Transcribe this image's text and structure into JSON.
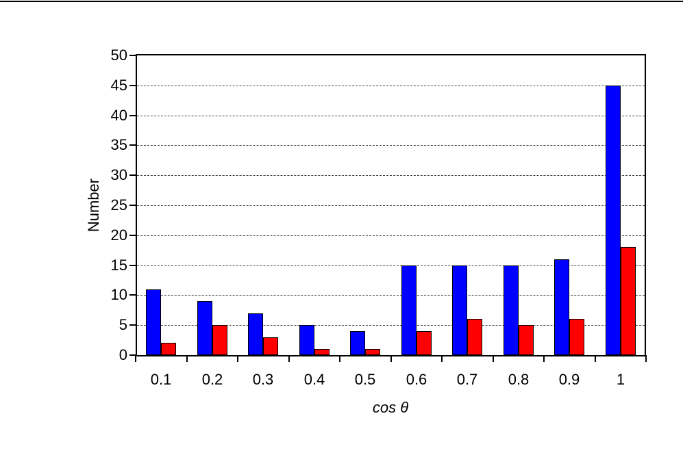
{
  "chart_data": {
    "type": "bar",
    "title": "",
    "categories": [
      "0.1",
      "0.2",
      "0.3",
      "0.4",
      "0.5",
      "0.6",
      "0.7",
      "0.8",
      "0.9",
      "1"
    ],
    "series": [
      {
        "name": "blue-series",
        "color": "#0000FF",
        "values": [
          11,
          9,
          7,
          5,
          4,
          15,
          15,
          15,
          16,
          45
        ]
      },
      {
        "name": "red-series",
        "color": "#FF0000",
        "values": [
          2,
          5,
          3,
          1,
          1,
          4,
          6,
          5,
          6,
          18
        ]
      }
    ],
    "xlabel": "cos θ",
    "ylabel": "Number",
    "ylim": [
      0,
      50
    ],
    "yticks": [
      0,
      5,
      10,
      15,
      20,
      25,
      30,
      35,
      40,
      45,
      50
    ],
    "grid": {
      "horizontal": true,
      "style": "dashed",
      "color": "#444444"
    },
    "legend_position": "none",
    "bar_outline_color": "#000000",
    "axis_color": "#000000"
  }
}
